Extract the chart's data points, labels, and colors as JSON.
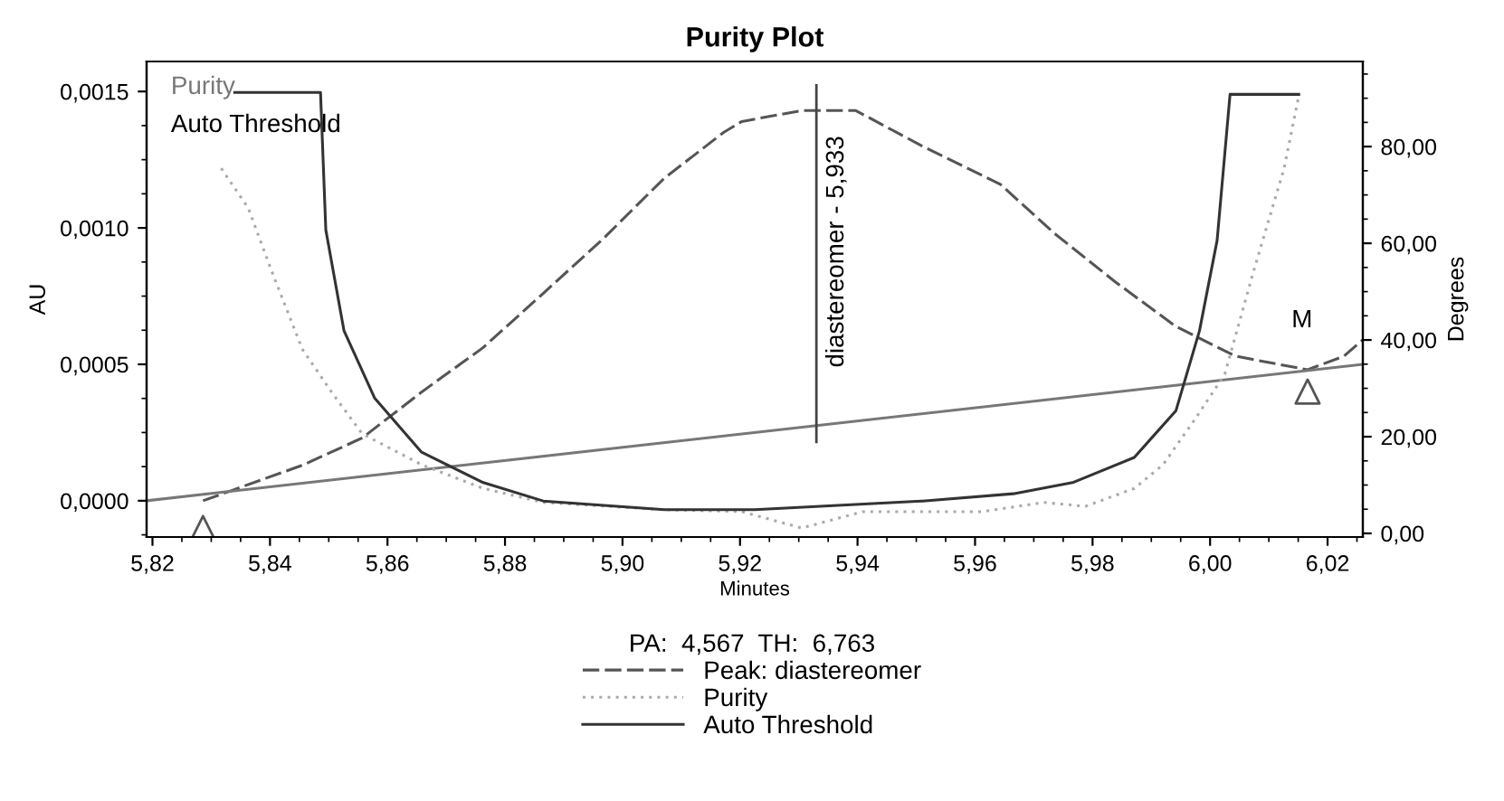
{
  "chart_data": {
    "type": "line",
    "title": "Purity Plot",
    "xlabel": "Minutes",
    "ylabel": "AU",
    "y2label": "Degrees",
    "legend_title": "PA:  4,567  TH:  6,763",
    "xlim": [
      5.819,
      6.026
    ],
    "xticks": [
      {
        "value": 5.82,
        "label": "5,82"
      },
      {
        "value": 5.84,
        "label": "5,84"
      },
      {
        "value": 5.86,
        "label": "5,86"
      },
      {
        "value": 5.88,
        "label": "5,88"
      },
      {
        "value": 5.9,
        "label": "5,90"
      },
      {
        "value": 5.92,
        "label": "5,92"
      },
      {
        "value": 5.94,
        "label": "5,94"
      },
      {
        "value": 5.96,
        "label": "5,96"
      },
      {
        "value": 5.98,
        "label": "5,98"
      },
      {
        "value": 6.0,
        "label": "6,00"
      },
      {
        "value": 6.02,
        "label": "6,02"
      }
    ],
    "ylim": [
      -0.000133,
      0.00161
    ],
    "yticks": [
      {
        "value": 0,
        "label": "0,0000"
      },
      {
        "value": 0.0005,
        "label": "0,0005"
      },
      {
        "value": 0.001,
        "label": "0,0010"
      },
      {
        "value": 0.0015,
        "label": "0,0015"
      }
    ],
    "y2lim": [
      -0.75,
      97.6
    ],
    "y2ticks": [
      {
        "value": 0,
        "label": "0,00"
      },
      {
        "value": 20,
        "label": "20,00"
      },
      {
        "value": 40,
        "label": "40,00"
      },
      {
        "value": 60,
        "label": "60,00"
      },
      {
        "value": 80,
        "label": "80,00"
      }
    ],
    "legend": "bottom",
    "series": [
      {
        "name": "Peak: diastereomer",
        "color": "#555555",
        "line_style": "dashed",
        "x": [
          5.8286,
          5.8455,
          5.8557,
          5.8659,
          5.8762,
          5.8865,
          5.8967,
          5.907,
          5.9172,
          5.9203,
          5.9305,
          5.9397,
          5.951,
          5.9643,
          5.9735,
          5.984,
          5.9941,
          6.0043,
          6.0166,
          6.0228,
          6.026
        ],
        "values": [
          0,
          0.00013,
          0.00023,
          0.0004,
          0.00056,
          0.00076,
          0.00096,
          0.00118,
          0.00135,
          0.00139,
          0.00143,
          0.00143,
          0.0013,
          0.00116,
          0.00098,
          0.0008,
          0.00064,
          0.00053,
          0.00048,
          0.00053,
          0.00059
        ]
      },
      {
        "name": "Purity",
        "color": "#aaaaaa",
        "line_style": "dotted",
        "axis": "y2",
        "x": [
          5.8317,
          5.8363,
          5.8403,
          5.8455,
          5.8505,
          5.8557,
          5.8658,
          5.8763,
          5.8865,
          5.9071,
          5.9203,
          5.9305,
          5.9409,
          5.9612,
          5.9717,
          5.9788,
          5.9871,
          5.992,
          5.9972,
          6.0025,
          6.0074,
          6.0126,
          6.0151
        ],
        "values": [
          75.5,
          67.3,
          54.2,
          38.1,
          29.2,
          20.6,
          14.2,
          9.3,
          6.4,
          4.9,
          4.5,
          1.1,
          4.5,
          4.5,
          6.4,
          5.6,
          9.3,
          14.2,
          23.2,
          32.9,
          54.2,
          75.5,
          90.5
        ]
      },
      {
        "name": "Auto Threshold",
        "color": "#333333",
        "line_style": "solid",
        "axis": "y2",
        "x": [
          5.834,
          5.8486,
          5.8495,
          5.8526,
          5.8578,
          5.8658,
          5.8763,
          5.8865,
          5.9071,
          5.9225,
          5.9511,
          5.9665,
          5.9766,
          5.9871,
          5.9942,
          5.9982,
          6.0012,
          6.0034,
          6.0151
        ],
        "values": [
          91.2,
          91.2,
          62.8,
          41.9,
          28,
          16.8,
          10.5,
          6.7,
          4.9,
          4.9,
          6.7,
          8.2,
          10.5,
          15.7,
          25.4,
          41.9,
          60.6,
          90.8,
          90.8
        ]
      },
      {
        "color": "#777777",
        "line_style": "solid",
        "x": [
          5.819,
          6.026
        ],
        "values": [
          0,
          0.0005
        ]
      },
      {
        "type": "scatter",
        "color": "#555555",
        "marker": "triangle",
        "x": [
          5.8286,
          6.0166
        ],
        "values": [
          -0.0001,
          0.0004
        ]
      }
    ],
    "ref_lines": [
      {
        "axis": "x",
        "value": 5.933,
        "label": "diastereomer - 5,933",
        "color": "#444444"
      }
    ],
    "annotations": [
      "Purity",
      "Auto Threshold",
      "M"
    ]
  }
}
